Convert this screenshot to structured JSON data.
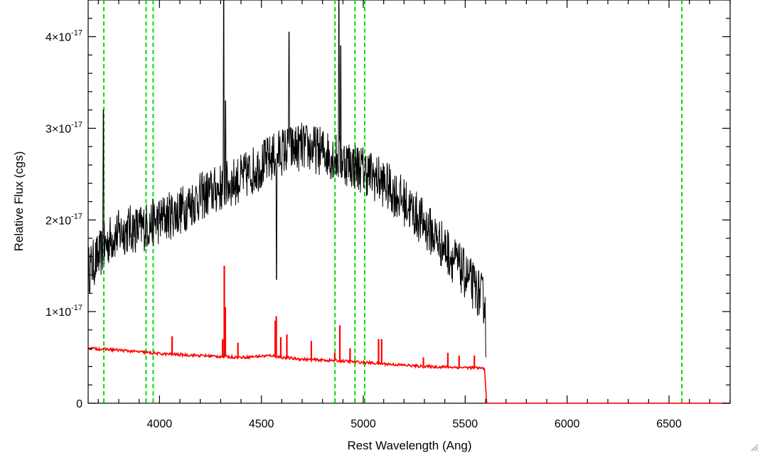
{
  "chart_data": {
    "type": "line",
    "title": "",
    "xlabel": "Rest Wavelength (Ang)",
    "ylabel": "Relative Flux (cgs)",
    "xlim": [
      3650,
      6800
    ],
    "ylim": [
      0,
      4.4e-17
    ],
    "x_ticks": [
      4000,
      4500,
      5000,
      5500,
      6000,
      6500
    ],
    "x_tick_labels": [
      "4000",
      "4500",
      "5000",
      "5500",
      "6000",
      "6500"
    ],
    "y_ticks": [
      0,
      1e-17,
      2e-17,
      3e-17,
      4e-17
    ],
    "y_tick_labels": [
      {
        "mantissa": "0",
        "exponent": ""
      },
      {
        "mantissa": "1×10",
        "exponent": "-17"
      },
      {
        "mantissa": "2×10",
        "exponent": "-17"
      },
      {
        "mantissa": "3×10",
        "exponent": "-17"
      },
      {
        "mantissa": "4×10",
        "exponent": "-17"
      }
    ],
    "grid": false,
    "reference_lines": {
      "color": "#00dd00",
      "style": "dashed",
      "x": [
        3727,
        3934,
        3969,
        4861,
        4959,
        5007,
        6563
      ]
    },
    "series": [
      {
        "color": "#000000",
        "style": "noisy",
        "x": [
          3650,
          3700,
          3760,
          3800,
          3850,
          3900,
          3950,
          4000,
          4100,
          4200,
          4300,
          4400,
          4500,
          4600,
          4700,
          4800,
          4900,
          5000,
          5100,
          5200,
          5300,
          5400,
          5500,
          5550,
          5600
        ],
        "y": [
          1.45e-17,
          1.6e-17,
          1.8e-17,
          1.85e-17,
          1.9e-17,
          1.9e-17,
          1.95e-17,
          2e-17,
          2.1e-17,
          2.25e-17,
          2.35e-17,
          2.45e-17,
          2.6e-17,
          2.75e-17,
          2.8e-17,
          2.75e-17,
          2.65e-17,
          2.55e-17,
          2.4e-17,
          2.2e-17,
          1.95e-17,
          1.7e-17,
          1.4e-17,
          1.25e-17,
          1.1e-17
        ],
        "noise": 2.7e-18,
        "spikes": [
          {
            "x": 3725,
            "y": 3.2e-17
          },
          {
            "x": 4315,
            "y": 4.4e-17
          },
          {
            "x": 4325,
            "y": 3.3e-17
          },
          {
            "x": 4575,
            "y": 1.35e-17
          },
          {
            "x": 4635,
            "y": 4.05e-17
          },
          {
            "x": 4880,
            "y": 4.4e-17
          },
          {
            "x": 4890,
            "y": 3.9e-17
          }
        ]
      },
      {
        "color": "#ff0000",
        "style": "model",
        "x": [
          3650,
          3800,
          4000,
          4200,
          4400,
          4550,
          4600,
          4700,
          4900,
          5100,
          5300,
          5500,
          5595,
          5605,
          6800
        ],
        "y": [
          6e-18,
          5.8e-18,
          5.4e-18,
          5.2e-18,
          5e-18,
          5.2e-18,
          5e-18,
          4.8e-18,
          4.6e-18,
          4.3e-18,
          4e-18,
          3.9e-18,
          3.8e-18,
          0.0,
          0.0
        ],
        "emission_lines": [
          {
            "x": 4062,
            "y": 7.3e-18
          },
          {
            "x": 4310,
            "y": 7e-18
          },
          {
            "x": 4318,
            "y": 1.5e-17
          },
          {
            "x": 4323,
            "y": 1.05e-17
          },
          {
            "x": 4385,
            "y": 6.6e-18
          },
          {
            "x": 4568,
            "y": 9e-18
          },
          {
            "x": 4573,
            "y": 9.5e-18
          },
          {
            "x": 4595,
            "y": 7.2e-18
          },
          {
            "x": 4625,
            "y": 7.5e-18
          },
          {
            "x": 4745,
            "y": 6.8e-18
          },
          {
            "x": 4860,
            "y": 5.5e-18
          },
          {
            "x": 4885,
            "y": 8.5e-18
          },
          {
            "x": 4935,
            "y": 6e-18
          },
          {
            "x": 5075,
            "y": 7e-18
          },
          {
            "x": 5090,
            "y": 7e-18
          },
          {
            "x": 5295,
            "y": 5e-18
          },
          {
            "x": 5415,
            "y": 5.5e-18
          },
          {
            "x": 5470,
            "y": 5.2e-18
          },
          {
            "x": 5545,
            "y": 5.2e-18
          }
        ]
      }
    ]
  }
}
